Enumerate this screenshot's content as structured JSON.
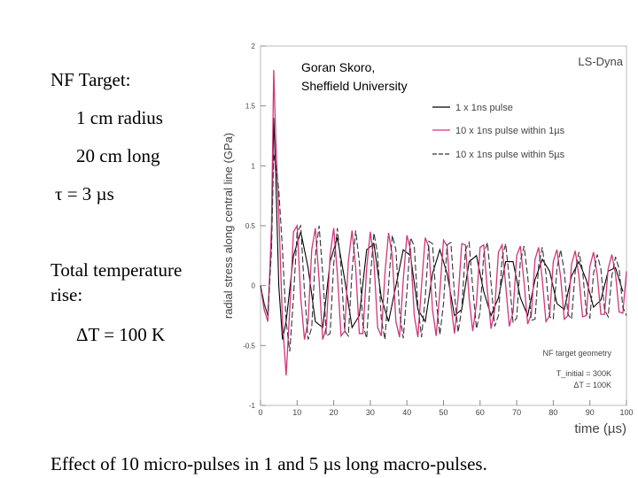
{
  "slide": {
    "target_title": "NF Target:",
    "radius": "1 cm radius",
    "length": "20 cm long",
    "tau": "τ = 3 µs",
    "temp_rise_line1": "Total temperature",
    "temp_rise_line2": "rise:",
    "delta_t": "ΔT = 100 K",
    "caption": "Effect of 10 micro-pulses  in 1 and 5 µs long macro-pulses.",
    "author_line1": "Goran Skoro,",
    "author_line2": "Sheffield University"
  },
  "chart_data": {
    "type": "line",
    "title": "LS-Dyna",
    "xlabel": "time (µs)",
    "ylabel": "radial stress along central line (GPa)",
    "xlim": [
      0,
      100
    ],
    "ylim": [
      -1,
      2
    ],
    "xticks": [
      "0",
      "10",
      "20",
      "30",
      "40",
      "50",
      "60",
      "70",
      "80",
      "90",
      "100"
    ],
    "yticks": [
      "-1",
      "-0.5",
      "0",
      "0.5",
      "1",
      "1.5",
      "2"
    ],
    "grid": false,
    "legend_position": "top-right",
    "annotation": {
      "line1": "NF target geometry",
      "line2": "T_initial = 300K",
      "line3": "ΔT = 100K"
    },
    "series": [
      {
        "name": "1 x 1ns pulse",
        "color": "#000000",
        "dash": "solid",
        "x": [
          0,
          1,
          2,
          3,
          3.6,
          4.2,
          5,
          6,
          7,
          9,
          11,
          13,
          15,
          17,
          19,
          21,
          23,
          25,
          27,
          29,
          31,
          33,
          35,
          37,
          39,
          41,
          43,
          45,
          47,
          49,
          51,
          53,
          55,
          57,
          59,
          61,
          63,
          65,
          67,
          69,
          71,
          73,
          75,
          77,
          79,
          81,
          83,
          85,
          87,
          89,
          91,
          93,
          95,
          97,
          99
        ],
        "y": [
          0,
          -0.15,
          -0.25,
          0.4,
          1.4,
          0.9,
          0.0,
          -0.45,
          -0.3,
          0.25,
          0.45,
          0.15,
          -0.3,
          -0.35,
          0.2,
          0.4,
          0.05,
          -0.35,
          -0.25,
          0.3,
          0.35,
          -0.1,
          -0.3,
          0.0,
          0.3,
          0.25,
          -0.2,
          -0.3,
          0.1,
          0.3,
          0.1,
          -0.25,
          -0.2,
          0.2,
          0.25,
          -0.05,
          -0.25,
          -0.1,
          0.2,
          0.2,
          -0.1,
          -0.25,
          0.05,
          0.22,
          0.12,
          -0.15,
          -0.2,
          0.08,
          0.2,
          0.05,
          -0.18,
          -0.12,
          0.12,
          0.15,
          -0.05
        ]
      },
      {
        "name": "10 x 1ns pulse within 1µs",
        "color": "#d4347c",
        "dash": "solid",
        "x": [
          0,
          1,
          2,
          3,
          3.6,
          4.2,
          5,
          6,
          7,
          8,
          9,
          10,
          11,
          12,
          13,
          14,
          15,
          16,
          17,
          18,
          19,
          20,
          21,
          22,
          23,
          24,
          25,
          26,
          27,
          28,
          29,
          30,
          31,
          32,
          33,
          34,
          35,
          36,
          37,
          38,
          39,
          40,
          41,
          42,
          43,
          44,
          45,
          46,
          47,
          48,
          49,
          50,
          51,
          52,
          53,
          54,
          55,
          56,
          57,
          58,
          59,
          60,
          61,
          62,
          63,
          64,
          65,
          66,
          67,
          68,
          69,
          70,
          71,
          72,
          73,
          74,
          75,
          76,
          77,
          78,
          79,
          80,
          81,
          82,
          83,
          84,
          85,
          86,
          87,
          88,
          89,
          90,
          91,
          92,
          93,
          94,
          95,
          96,
          97,
          98,
          99,
          100
        ],
        "y": [
          0,
          -0.2,
          -0.3,
          0.5,
          1.8,
          1.2,
          0.6,
          -0.3,
          -0.75,
          -0.2,
          0.45,
          0.5,
          -0.1,
          -0.45,
          -0.3,
          0.3,
          0.48,
          0.05,
          -0.45,
          -0.35,
          0.25,
          0.48,
          0.1,
          -0.42,
          -0.38,
          0.2,
          0.46,
          0.15,
          -0.4,
          -0.4,
          0.15,
          0.45,
          0.2,
          -0.35,
          -0.42,
          0.1,
          0.44,
          0.25,
          -0.3,
          -0.43,
          0.05,
          0.42,
          0.3,
          -0.25,
          -0.43,
          0.0,
          0.4,
          0.32,
          -0.2,
          -0.42,
          -0.05,
          0.38,
          0.33,
          -0.15,
          -0.4,
          -0.1,
          0.35,
          0.34,
          -0.1,
          -0.38,
          -0.15,
          0.32,
          0.34,
          -0.05,
          -0.36,
          -0.2,
          0.28,
          0.34,
          0.0,
          -0.34,
          -0.22,
          0.25,
          0.33,
          0.03,
          -0.32,
          -0.24,
          0.22,
          0.32,
          0.05,
          -0.3,
          -0.25,
          0.2,
          0.3,
          0.07,
          -0.28,
          -0.25,
          0.18,
          0.29,
          0.08,
          -0.26,
          -0.25,
          0.16,
          0.28,
          0.09,
          -0.24,
          -0.24,
          0.14,
          0.26,
          0.1,
          -0.22,
          -0.23,
          0.12
        ]
      },
      {
        "name": "10 x 1ns pulse within 5µs",
        "color": "#333333",
        "dash": "dashed",
        "x": [
          0,
          1,
          2,
          3,
          3.6,
          4.2,
          5,
          6,
          7,
          8,
          9,
          10,
          11,
          12,
          13,
          14,
          15,
          16,
          17,
          18,
          19,
          20,
          21,
          22,
          23,
          24,
          25,
          26,
          27,
          28,
          29,
          30,
          31,
          32,
          33,
          34,
          35,
          36,
          37,
          38,
          39,
          40,
          41,
          42,
          43,
          44,
          45,
          46,
          47,
          48,
          49,
          50,
          51,
          52,
          53,
          54,
          55,
          56,
          57,
          58,
          59,
          60,
          61,
          62,
          63,
          64,
          65,
          66,
          67,
          68,
          69,
          70,
          71,
          72,
          73,
          74,
          75,
          76,
          77,
          78,
          79,
          80,
          81,
          82,
          83,
          84,
          85,
          86,
          87,
          88,
          89,
          90,
          91,
          92,
          93,
          94,
          95,
          96,
          97,
          98,
          99,
          100
        ],
        "y": [
          0,
          -0.15,
          -0.25,
          0.3,
          1.1,
          1.0,
          0.8,
          0.3,
          -0.3,
          -0.55,
          -0.1,
          0.45,
          0.5,
          -0.05,
          -0.45,
          -0.35,
          0.25,
          0.5,
          0.1,
          -0.42,
          -0.4,
          0.18,
          0.48,
          0.15,
          -0.38,
          -0.42,
          0.12,
          0.46,
          0.2,
          -0.33,
          -0.44,
          0.06,
          0.44,
          0.26,
          -0.28,
          -0.45,
          0.0,
          0.42,
          0.3,
          -0.22,
          -0.44,
          -0.05,
          0.4,
          0.33,
          -0.17,
          -0.43,
          -0.1,
          0.37,
          0.35,
          -0.12,
          -0.41,
          -0.15,
          0.34,
          0.36,
          -0.07,
          -0.39,
          -0.19,
          0.3,
          0.36,
          -0.02,
          -0.36,
          -0.22,
          0.26,
          0.36,
          0.02,
          -0.34,
          -0.25,
          0.23,
          0.35,
          0.05,
          -0.31,
          -0.27,
          0.2,
          0.33,
          0.08,
          -0.29,
          -0.28,
          0.17,
          0.32,
          0.1,
          -0.26,
          -0.28,
          0.14,
          0.3,
          0.12,
          -0.24,
          -0.28,
          0.12,
          0.28,
          0.13,
          -0.22,
          -0.27,
          0.1,
          0.26,
          0.14,
          -0.2,
          -0.26,
          0.08,
          0.24,
          0.14,
          -0.18,
          -0.25
        ]
      }
    ]
  }
}
